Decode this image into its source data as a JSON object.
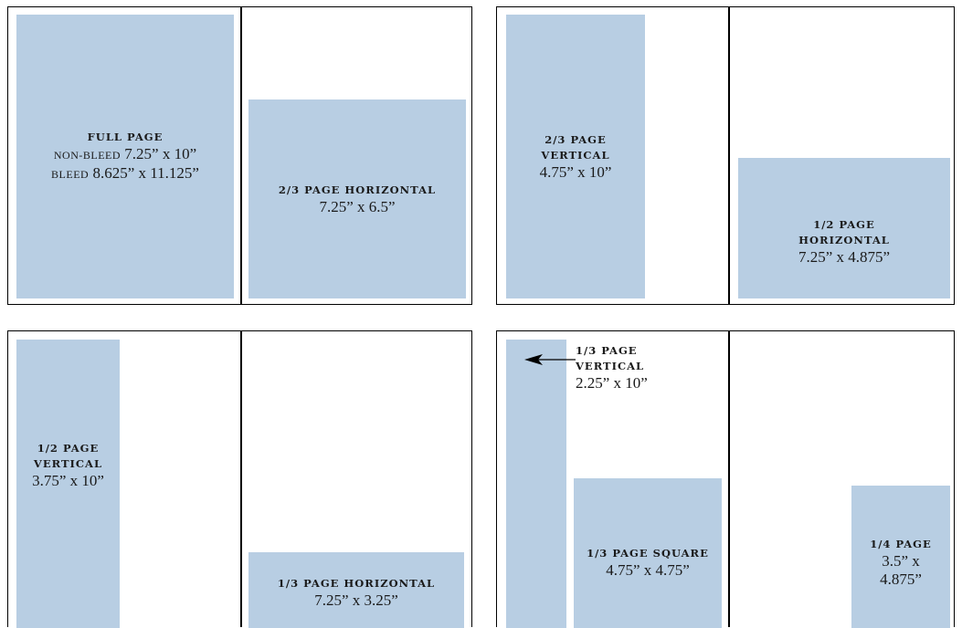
{
  "ads": {
    "full_page": {
      "title": "FULL PAGE",
      "nonbleed_label": "NON-BLEED",
      "nonbleed_size": "7.25” x 10”",
      "bleed_label": "BLEED",
      "bleed_size": "8.625” x 11.125”"
    },
    "two_thirds_horizontal": {
      "title": "2/3 PAGE HORIZONTAL",
      "size": "7.25” x 6.5”"
    },
    "two_thirds_vertical": {
      "title_line1": "2/3 PAGE",
      "title_line2": "VERTICAL",
      "size": "4.75” x 10”"
    },
    "half_horizontal": {
      "title_line1": "1/2 PAGE",
      "title_line2": "HORIZONTAL",
      "size": "7.25” x 4.875”"
    },
    "half_vertical": {
      "title_line1": "1/2 PAGE",
      "title_line2": "VERTICAL",
      "size": "3.75” x 10”"
    },
    "third_horizontal": {
      "title": "1/3 PAGE HORIZONTAL",
      "size": "7.25” x 3.25”"
    },
    "third_vertical": {
      "title_line1": "1/3 PAGE",
      "title_line2": "VERTICAL",
      "size": "2.25” x 10”"
    },
    "third_square": {
      "title": "1/3 PAGE SQUARE",
      "size": "4.75” x 4.75”"
    },
    "quarter": {
      "title": "1/4 PAGE",
      "size_line1": "3.5” x",
      "size_line2": "4.875”"
    }
  },
  "colors": {
    "ad_fill": "#b8cee3",
    "border": "#000000",
    "background": "#ffffff"
  }
}
